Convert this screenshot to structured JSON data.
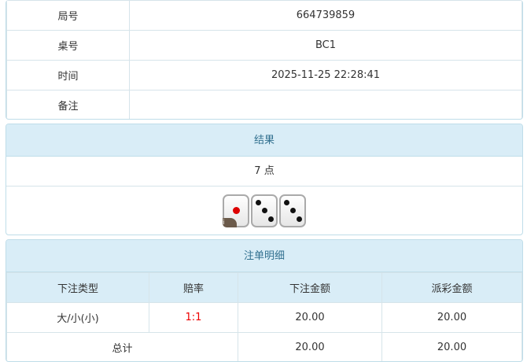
{
  "info": [
    {
      "label": "局号",
      "value": "664739859"
    },
    {
      "label": "桌号",
      "value": "BC1"
    },
    {
      "label": "时间",
      "value": "2025-11-25 22:28:41"
    },
    {
      "label": "备注",
      "value": ""
    }
  ],
  "result": {
    "title": "结果",
    "points": "7 点",
    "dice": [
      1,
      3,
      3
    ],
    "info_badge": "i"
  },
  "bets": {
    "title": "注单明细",
    "headers": [
      "下注类型",
      "赔率",
      "下注金额",
      "派彩金额"
    ],
    "rows": [
      {
        "type": "大/小(小)",
        "odds": "1:1",
        "amount": "20.00",
        "payout": "20.00"
      }
    ],
    "total": {
      "label": "总计",
      "amount": "20.00",
      "payout": "20.00"
    }
  },
  "colors": {
    "odds": "#ee0000",
    "header_bg": "#d9edf7"
  }
}
